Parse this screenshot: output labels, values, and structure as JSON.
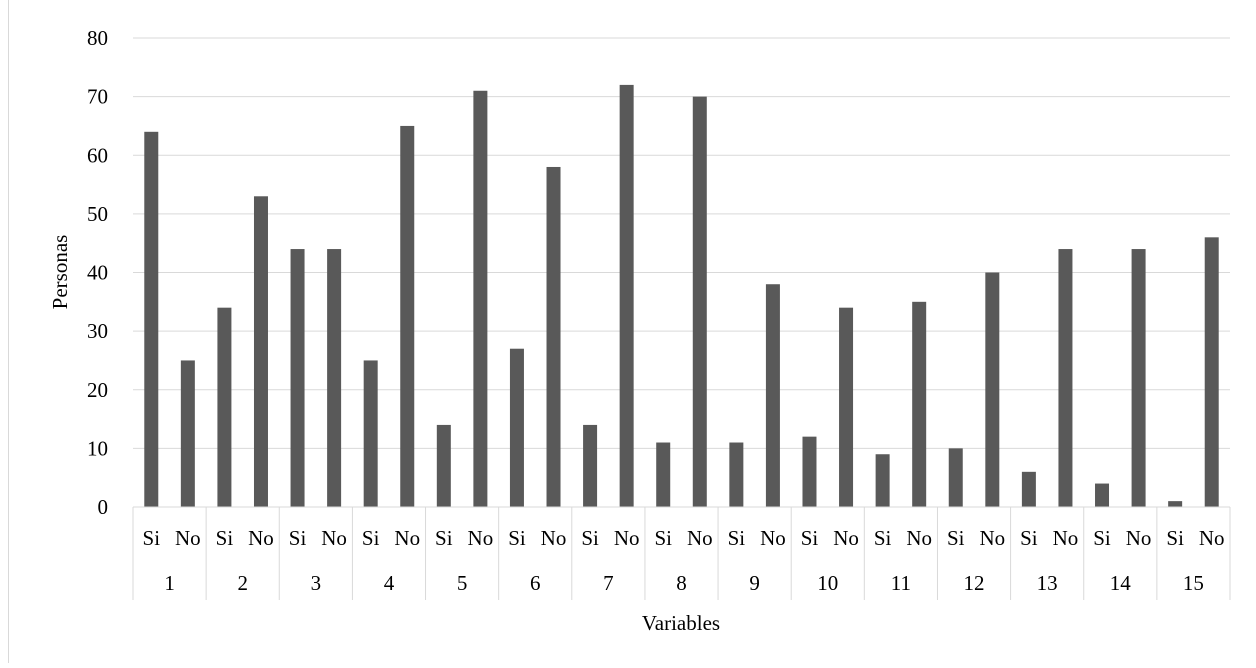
{
  "chart_data": {
    "type": "bar",
    "ylabel": "Personas",
    "xlabel": "Variables",
    "ylim": [
      0,
      80
    ],
    "yticks": [
      0,
      10,
      20,
      30,
      40,
      50,
      60,
      70,
      80
    ],
    "grid": true,
    "bar_color": "#595959",
    "groups": [
      {
        "label": "1",
        "categories": [
          "Si",
          "No"
        ],
        "values": [
          64,
          25
        ]
      },
      {
        "label": "2",
        "categories": [
          "Si",
          "No"
        ],
        "values": [
          34,
          53
        ]
      },
      {
        "label": "3",
        "categories": [
          "Si",
          "No"
        ],
        "values": [
          44,
          44
        ]
      },
      {
        "label": "4",
        "categories": [
          "Si",
          "No"
        ],
        "values": [
          25,
          65
        ]
      },
      {
        "label": "5",
        "categories": [
          "Si",
          "No"
        ],
        "values": [
          14,
          71
        ]
      },
      {
        "label": "6",
        "categories": [
          "Si",
          "No"
        ],
        "values": [
          27,
          58
        ]
      },
      {
        "label": "7",
        "categories": [
          "Si",
          "No"
        ],
        "values": [
          14,
          72
        ]
      },
      {
        "label": "8",
        "categories": [
          "Si",
          "No"
        ],
        "values": [
          11,
          70
        ]
      },
      {
        "label": "9",
        "categories": [
          "Si",
          "No"
        ],
        "values": [
          11,
          38
        ]
      },
      {
        "label": "10",
        "categories": [
          "Si",
          "No"
        ],
        "values": [
          12,
          34
        ]
      },
      {
        "label": "11",
        "categories": [
          "Si",
          "No"
        ],
        "values": [
          9,
          35
        ]
      },
      {
        "label": "12",
        "categories": [
          "Si",
          "No"
        ],
        "values": [
          10,
          40
        ]
      },
      {
        "label": "13",
        "categories": [
          "Si",
          "No"
        ],
        "values": [
          6,
          44
        ]
      },
      {
        "label": "14",
        "categories": [
          "Si",
          "No"
        ],
        "values": [
          4,
          44
        ]
      },
      {
        "label": "15",
        "categories": [
          "Si",
          "No"
        ],
        "values": [
          1,
          46
        ]
      }
    ]
  }
}
